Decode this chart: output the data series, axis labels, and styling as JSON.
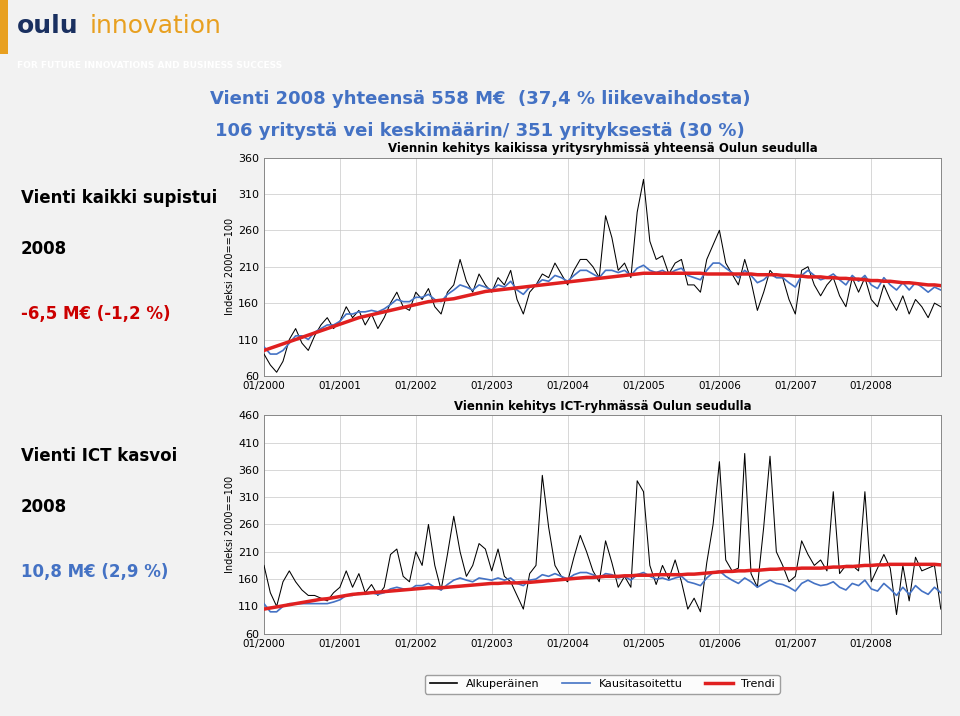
{
  "title_line1": "Vienti 2008 yhteensä 558 M€  (37,4 % liikevaihdosta)",
  "title_line2": "106 yritystä vei keskimäärin/ 351 yrityksestä (30 %)",
  "left_text1_line1": "Vienti kaikki supistui",
  "left_text1_line2": "2008",
  "left_text1_line3": "-6,5 M€ (-1,2 %)",
  "left_text2_line1": "Vienti ICT kasvoi",
  "left_text2_line2": "2008",
  "left_text2_line3": "10,8 M€ (2,9 %)",
  "chart1_title": "Viennin kehitys kaikissa yritysryhmissä yhteensä Oulun seudulla",
  "chart2_title": "Viennin kehitys ICT-ryhmässä Oulun seudulla",
  "ylabel": "Indeksi 2000==100",
  "legend_labels": [
    "Alkuperäinen",
    "Kausitasoitettu",
    "Trendi"
  ],
  "chart1_ylim": [
    60,
    360
  ],
  "chart1_yticks": [
    60,
    110,
    160,
    210,
    260,
    310,
    360
  ],
  "chart2_ylim": [
    60,
    460
  ],
  "chart2_yticks": [
    60,
    110,
    160,
    210,
    260,
    310,
    360,
    410,
    460
  ],
  "xtick_labels": [
    "01/2000",
    "01/2001",
    "01/2002",
    "01/2003",
    "01/2004",
    "01/2005",
    "01/2006",
    "01/2007",
    "01/2008"
  ],
  "header_logo_bg": "#dce9f5",
  "header_band_bg": "#4a7eba",
  "header_band_text": "FOR FUTURE INNOVATIONS AND BUSINESS SUCCESS",
  "header_band_text_color": "#ffffff",
  "oulu_color": "#1a3060",
  "innovation_color": "#e8a020",
  "title_color": "#4472c4",
  "page_bg": "#f2f2f2",
  "left_text_black": "#000000",
  "left_text_red": "#cc0000",
  "left_text_blue": "#4472c4",
  "chart_bg": "#ffffff",
  "grid_color": "#c8c8c8",
  "line_original_color": "#000000",
  "line_seasonal_color": "#4472c4",
  "line_trend_color": "#e02020",
  "chart1_original": [
    90,
    75,
    65,
    80,
    110,
    125,
    105,
    95,
    115,
    130,
    140,
    125,
    135,
    155,
    140,
    150,
    130,
    145,
    125,
    140,
    160,
    175,
    155,
    150,
    175,
    165,
    180,
    155,
    145,
    175,
    185,
    220,
    190,
    175,
    200,
    185,
    175,
    195,
    185,
    205,
    165,
    145,
    175,
    185,
    200,
    195,
    215,
    200,
    185,
    205,
    220,
    220,
    210,
    195,
    280,
    250,
    205,
    215,
    195,
    285,
    330,
    245,
    220,
    225,
    200,
    215,
    220,
    185,
    185,
    175,
    220,
    240,
    260,
    215,
    200,
    185,
    220,
    190,
    150,
    175,
    205,
    195,
    195,
    165,
    145,
    205,
    210,
    185,
    170,
    185,
    195,
    170,
    155,
    195,
    175,
    195,
    165,
    155,
    185,
    165,
    150,
    170,
    145,
    165,
    155,
    140,
    160,
    155
  ],
  "chart1_seasonal": [
    100,
    90,
    90,
    95,
    105,
    115,
    115,
    110,
    120,
    125,
    130,
    130,
    135,
    145,
    145,
    148,
    148,
    150,
    148,
    152,
    158,
    165,
    162,
    162,
    168,
    168,
    172,
    165,
    162,
    172,
    178,
    185,
    182,
    178,
    185,
    182,
    178,
    185,
    182,
    190,
    178,
    172,
    182,
    185,
    192,
    190,
    198,
    195,
    190,
    198,
    205,
    205,
    200,
    195,
    205,
    205,
    202,
    205,
    198,
    208,
    212,
    205,
    202,
    205,
    200,
    205,
    208,
    198,
    195,
    192,
    205,
    215,
    215,
    208,
    202,
    195,
    205,
    198,
    188,
    192,
    200,
    195,
    195,
    188,
    182,
    198,
    205,
    198,
    192,
    195,
    200,
    192,
    185,
    198,
    190,
    198,
    185,
    180,
    195,
    185,
    178,
    188,
    178,
    188,
    182,
    175,
    182,
    178
  ],
  "chart1_trend": [
    95,
    98,
    101,
    104,
    107,
    110,
    113,
    116,
    119,
    122,
    125,
    128,
    131,
    134,
    137,
    140,
    142,
    144,
    146,
    148,
    150,
    152,
    154,
    156,
    158,
    160,
    162,
    163,
    164,
    165,
    166,
    168,
    170,
    172,
    174,
    176,
    177,
    178,
    179,
    180,
    181,
    182,
    183,
    184,
    185,
    186,
    187,
    188,
    189,
    190,
    191,
    192,
    193,
    194,
    195,
    196,
    197,
    198,
    199,
    200,
    201,
    201,
    201,
    201,
    201,
    201,
    201,
    201,
    201,
    201,
    200,
    200,
    200,
    200,
    200,
    200,
    200,
    200,
    199,
    199,
    199,
    199,
    198,
    198,
    197,
    197,
    196,
    196,
    196,
    195,
    195,
    194,
    194,
    193,
    193,
    192,
    191,
    191,
    190,
    190,
    189,
    188,
    188,
    187,
    186,
    185,
    185,
    184
  ],
  "chart2_original": [
    185,
    135,
    110,
    155,
    175,
    155,
    140,
    130,
    130,
    125,
    120,
    135,
    145,
    175,
    145,
    170,
    135,
    150,
    130,
    145,
    205,
    215,
    165,
    155,
    210,
    185,
    260,
    185,
    140,
    205,
    275,
    210,
    165,
    185,
    225,
    215,
    175,
    215,
    165,
    155,
    130,
    105,
    170,
    185,
    350,
    255,
    185,
    165,
    155,
    200,
    240,
    210,
    175,
    155,
    230,
    190,
    145,
    165,
    145,
    340,
    320,
    185,
    150,
    185,
    160,
    195,
    155,
    105,
    125,
    100,
    190,
    260,
    375,
    195,
    175,
    180,
    390,
    170,
    145,
    255,
    385,
    210,
    185,
    155,
    165,
    230,
    205,
    185,
    195,
    175,
    320,
    170,
    185,
    185,
    175,
    320,
    155,
    180,
    205,
    180,
    95,
    185,
    120,
    200,
    175,
    180,
    185,
    105
  ],
  "chart2_seasonal": [
    115,
    100,
    100,
    110,
    115,
    115,
    115,
    115,
    115,
    115,
    115,
    118,
    122,
    130,
    130,
    135,
    132,
    135,
    132,
    135,
    142,
    145,
    142,
    140,
    148,
    148,
    152,
    145,
    140,
    150,
    158,
    162,
    158,
    155,
    162,
    160,
    158,
    162,
    158,
    162,
    152,
    148,
    158,
    160,
    168,
    165,
    170,
    165,
    160,
    168,
    172,
    172,
    168,
    162,
    170,
    168,
    162,
    165,
    158,
    168,
    172,
    165,
    160,
    162,
    158,
    162,
    165,
    155,
    152,
    148,
    162,
    172,
    175,
    165,
    158,
    152,
    162,
    155,
    145,
    152,
    158,
    152,
    150,
    145,
    138,
    152,
    158,
    152,
    148,
    150,
    155,
    145,
    140,
    152,
    148,
    158,
    142,
    138,
    152,
    142,
    130,
    145,
    132,
    148,
    138,
    132,
    145,
    135
  ],
  "chart2_trend": [
    105,
    107,
    109,
    111,
    113,
    115,
    117,
    119,
    121,
    123,
    124,
    126,
    128,
    130,
    132,
    133,
    134,
    135,
    136,
    137,
    138,
    139,
    140,
    141,
    142,
    143,
    144,
    144,
    144,
    145,
    146,
    147,
    148,
    149,
    150,
    151,
    152,
    152,
    153,
    153,
    153,
    154,
    154,
    155,
    156,
    157,
    158,
    159,
    160,
    161,
    162,
    163,
    163,
    164,
    165,
    165,
    165,
    166,
    166,
    167,
    167,
    167,
    168,
    168,
    168,
    168,
    168,
    169,
    169,
    170,
    171,
    172,
    173,
    174,
    174,
    175,
    175,
    176,
    176,
    177,
    178,
    178,
    179,
    179,
    179,
    180,
    180,
    180,
    180,
    181,
    182,
    182,
    183,
    183,
    184,
    185,
    185,
    186,
    186,
    187,
    187,
    187,
    187,
    187,
    187,
    187,
    187,
    186
  ]
}
